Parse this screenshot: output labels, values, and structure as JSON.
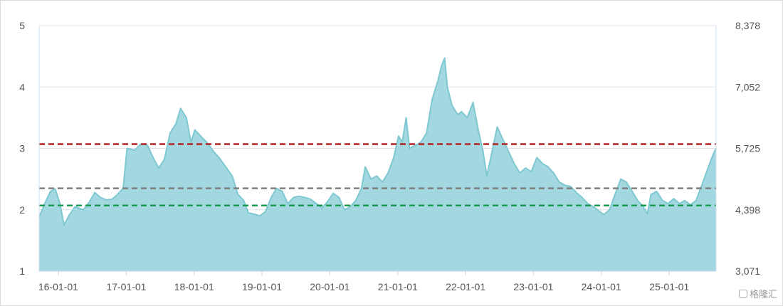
{
  "chart_data": {
    "type": "area",
    "title": "",
    "xlabel": "",
    "ylabel": "",
    "x_tick_labels": [
      "16-01-01",
      "17-01-01",
      "18-01-01",
      "19-01-01",
      "20-01-01",
      "21-01-01",
      "22-01-01",
      "23-01-01",
      "24-01-01",
      "25-01-01"
    ],
    "left_axis": {
      "ylim": [
        1,
        5
      ],
      "tick_labels": [
        "1",
        "2",
        "3",
        "4",
        "5"
      ]
    },
    "right_axis": {
      "ylim": [
        3071,
        8378
      ],
      "tick_labels": [
        "3,071",
        "4,398",
        "5,725",
        "7,052",
        "8,378"
      ]
    },
    "grid": {
      "horizontal": true,
      "vertical": false
    },
    "series": [
      {
        "axis": "left",
        "color": "#7ec8d1",
        "fill": "#a3d8e0",
        "points": [
          [
            "2015-09-20",
            1.88
          ],
          [
            "2015-10-20",
            2.1
          ],
          [
            "2015-11-20",
            2.3
          ],
          [
            "2015-12-15",
            2.34
          ],
          [
            "2016-01-10",
            2.1
          ],
          [
            "2016-02-01",
            1.75
          ],
          [
            "2016-03-01",
            1.92
          ],
          [
            "2016-04-01",
            2.05
          ],
          [
            "2016-05-15",
            2.0
          ],
          [
            "2016-06-15",
            2.12
          ],
          [
            "2016-07-15",
            2.28
          ],
          [
            "2016-08-15",
            2.2
          ],
          [
            "2016-09-15",
            2.16
          ],
          [
            "2016-10-15",
            2.17
          ],
          [
            "2016-11-15",
            2.25
          ],
          [
            "2016-12-15",
            2.35
          ],
          [
            "2017-01-05",
            3.0
          ],
          [
            "2017-02-15",
            2.97
          ],
          [
            "2017-03-20",
            3.07
          ],
          [
            "2017-04-25",
            3.05
          ],
          [
            "2017-05-25",
            2.85
          ],
          [
            "2017-06-25",
            2.68
          ],
          [
            "2017-07-25",
            2.82
          ],
          [
            "2017-08-25",
            3.25
          ],
          [
            "2017-09-25",
            3.4
          ],
          [
            "2017-10-20",
            3.65
          ],
          [
            "2017-11-20",
            3.5
          ],
          [
            "2017-12-15",
            3.1
          ],
          [
            "2018-01-05",
            3.3
          ],
          [
            "2018-02-05",
            3.2
          ],
          [
            "2018-03-10",
            3.1
          ],
          [
            "2018-04-15",
            2.95
          ],
          [
            "2018-05-15",
            2.85
          ],
          [
            "2018-06-20",
            2.7
          ],
          [
            "2018-07-25",
            2.55
          ],
          [
            "2018-08-25",
            2.25
          ],
          [
            "2018-09-25",
            2.15
          ],
          [
            "2018-10-20",
            1.95
          ],
          [
            "2018-11-20",
            1.93
          ],
          [
            "2018-12-20",
            1.9
          ],
          [
            "2019-01-20",
            1.97
          ],
          [
            "2019-02-20",
            2.2
          ],
          [
            "2019-03-20",
            2.35
          ],
          [
            "2019-04-20",
            2.3
          ],
          [
            "2019-05-20",
            2.1
          ],
          [
            "2019-06-20",
            2.2
          ],
          [
            "2019-07-20",
            2.22
          ],
          [
            "2019-08-20",
            2.2
          ],
          [
            "2019-09-20",
            2.17
          ],
          [
            "2019-10-20",
            2.1
          ],
          [
            "2019-11-20",
            2.03
          ],
          [
            "2019-12-20",
            2.13
          ],
          [
            "2020-01-20",
            2.27
          ],
          [
            "2020-02-20",
            2.2
          ],
          [
            "2020-03-20",
            2.0
          ],
          [
            "2020-04-20",
            2.05
          ],
          [
            "2020-05-20",
            2.15
          ],
          [
            "2020-06-20",
            2.35
          ],
          [
            "2020-07-10",
            2.7
          ],
          [
            "2020-08-10",
            2.5
          ],
          [
            "2020-09-10",
            2.55
          ],
          [
            "2020-10-10",
            2.45
          ],
          [
            "2020-11-10",
            2.6
          ],
          [
            "2020-12-10",
            2.85
          ],
          [
            "2021-01-05",
            3.2
          ],
          [
            "2021-01-25",
            3.1
          ],
          [
            "2021-02-15",
            3.5
          ],
          [
            "2021-03-05",
            3.0
          ],
          [
            "2021-04-05",
            3.05
          ],
          [
            "2021-05-05",
            3.1
          ],
          [
            "2021-06-05",
            3.25
          ],
          [
            "2021-07-05",
            3.8
          ],
          [
            "2021-08-05",
            4.1
          ],
          [
            "2021-08-25",
            4.35
          ],
          [
            "2021-09-10",
            4.47
          ],
          [
            "2021-09-25",
            4.0
          ],
          [
            "2021-10-20",
            3.7
          ],
          [
            "2021-11-20",
            3.55
          ],
          [
            "2021-12-10",
            3.6
          ],
          [
            "2022-01-10",
            3.5
          ],
          [
            "2022-02-10",
            3.75
          ],
          [
            "2022-03-10",
            3.3
          ],
          [
            "2022-04-05",
            2.95
          ],
          [
            "2022-04-25",
            2.55
          ],
          [
            "2022-05-20",
            2.9
          ],
          [
            "2022-06-20",
            3.35
          ],
          [
            "2022-07-20",
            3.15
          ],
          [
            "2022-08-20",
            2.95
          ],
          [
            "2022-09-20",
            2.75
          ],
          [
            "2022-10-20",
            2.6
          ],
          [
            "2022-11-20",
            2.68
          ],
          [
            "2022-12-20",
            2.62
          ],
          [
            "2023-01-20",
            2.85
          ],
          [
            "2023-02-20",
            2.75
          ],
          [
            "2023-03-20",
            2.7
          ],
          [
            "2023-04-20",
            2.6
          ],
          [
            "2023-05-20",
            2.45
          ],
          [
            "2023-06-20",
            2.4
          ],
          [
            "2023-07-20",
            2.38
          ],
          [
            "2023-08-20",
            2.28
          ],
          [
            "2023-09-20",
            2.2
          ],
          [
            "2023-10-20",
            2.1
          ],
          [
            "2023-11-20",
            2.05
          ],
          [
            "2023-12-20",
            1.98
          ],
          [
            "2024-01-15",
            1.92
          ],
          [
            "2024-02-15",
            2.0
          ],
          [
            "2024-03-15",
            2.25
          ],
          [
            "2024-04-15",
            2.5
          ],
          [
            "2024-05-15",
            2.45
          ],
          [
            "2024-06-15",
            2.3
          ],
          [
            "2024-07-15",
            2.15
          ],
          [
            "2024-08-15",
            2.05
          ],
          [
            "2024-09-05",
            1.93
          ],
          [
            "2024-09-25",
            2.25
          ],
          [
            "2024-10-25",
            2.3
          ],
          [
            "2024-11-25",
            2.15
          ],
          [
            "2024-12-25",
            2.1
          ],
          [
            "2025-01-25",
            2.18
          ],
          [
            "2025-02-25",
            2.1
          ],
          [
            "2025-03-25",
            2.15
          ],
          [
            "2025-04-25",
            2.08
          ],
          [
            "2025-05-25",
            2.15
          ],
          [
            "2025-06-25",
            2.4
          ],
          [
            "2025-07-25",
            2.65
          ],
          [
            "2025-08-25",
            2.9
          ],
          [
            "2025-09-10",
            3.0
          ]
        ]
      }
    ],
    "reference_lines": [
      {
        "axis": "left",
        "value": 3.07,
        "color": "#b22222",
        "style": "dashed"
      },
      {
        "axis": "left",
        "value": 2.35,
        "color": "#7f7f7f",
        "style": "dashed"
      },
      {
        "axis": "left",
        "value": 2.07,
        "color": "#1a9850",
        "style": "dashed"
      }
    ]
  },
  "watermark": {
    "text": "格隆汇",
    "icon": "glh-logo-icon"
  }
}
